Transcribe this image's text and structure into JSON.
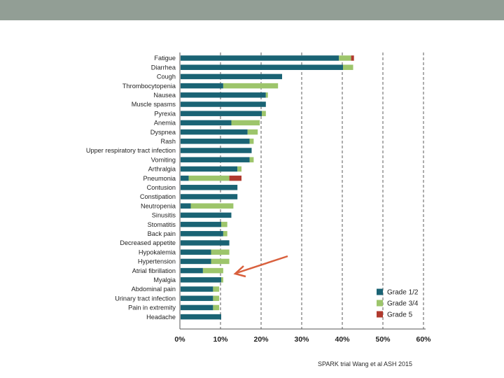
{
  "colors": {
    "grade12": "#1a6374",
    "grade34": "#9dc56b",
    "grade5": "#b03a2e",
    "header": "#929e95",
    "arrow": "#d9603d"
  },
  "chart_data": {
    "type": "bar",
    "orientation": "horizontal",
    "stacked": true,
    "title": "",
    "xlabel": "",
    "ylabel": "",
    "xlim": [
      0,
      60
    ],
    "x_ticks": [
      "0%",
      "10%",
      "20%",
      "30%",
      "40%",
      "50%",
      "60%"
    ],
    "grid": "vertical dashed at 10% intervals",
    "legend_position": "bottom-right",
    "categories": [
      "Fatigue",
      "Diarrhea",
      "Cough",
      "Thrombocytopenia",
      "Nausea",
      "Muscle spasms",
      "Pyrexia",
      "Anemia",
      "Dyspnea",
      "Rash",
      "Upper respiratory tract infection",
      "Vomiting",
      "Arthralgia",
      "Pneumonia",
      "Contusion",
      "Constipation",
      "Neutropenia",
      "Sinusitis",
      "Stomatitis",
      "Back pain",
      "Decreased appetite",
      "Hypokalemia",
      "Hypertension",
      "Atrial fibrillation",
      "Myalgia",
      "Abdominal pain",
      "Urinary tract infection",
      "Pain in extremity",
      "Headache"
    ],
    "series": [
      {
        "name": "Grade 1/2",
        "color_key": "grade12",
        "values": [
          39,
          40,
          25,
          10.5,
          21,
          21,
          20,
          12.5,
          16.5,
          17,
          17.5,
          17,
          14,
          2,
          14,
          14,
          2.5,
          12.5,
          10,
          10.5,
          12,
          7.5,
          7.5,
          5.5,
          10,
          8,
          8,
          8,
          10
        ]
      },
      {
        "name": "Grade 3/4",
        "color_key": "grade34",
        "values": [
          3,
          2.5,
          0,
          13.5,
          0.5,
          0,
          1,
          7,
          2.5,
          1,
          0,
          1,
          1,
          10,
          0,
          0,
          10.5,
          0,
          1.5,
          1,
          0,
          4.5,
          4.5,
          5,
          0.5,
          1.5,
          1.5,
          1.5,
          0
        ]
      },
      {
        "name": "Grade 5",
        "color_key": "grade5",
        "values": [
          0.7,
          0,
          0,
          0,
          0,
          0,
          0,
          0,
          0,
          0,
          0,
          0,
          0,
          3,
          0,
          0,
          0,
          0,
          0,
          0,
          0,
          0,
          0,
          0,
          0,
          0,
          0,
          0,
          0
        ]
      }
    ],
    "legend": [
      "Grade 1/2",
      "Grade 3/4",
      "Grade 5"
    ]
  },
  "source_note": "SPARK trial Wang et al ASH 2015"
}
